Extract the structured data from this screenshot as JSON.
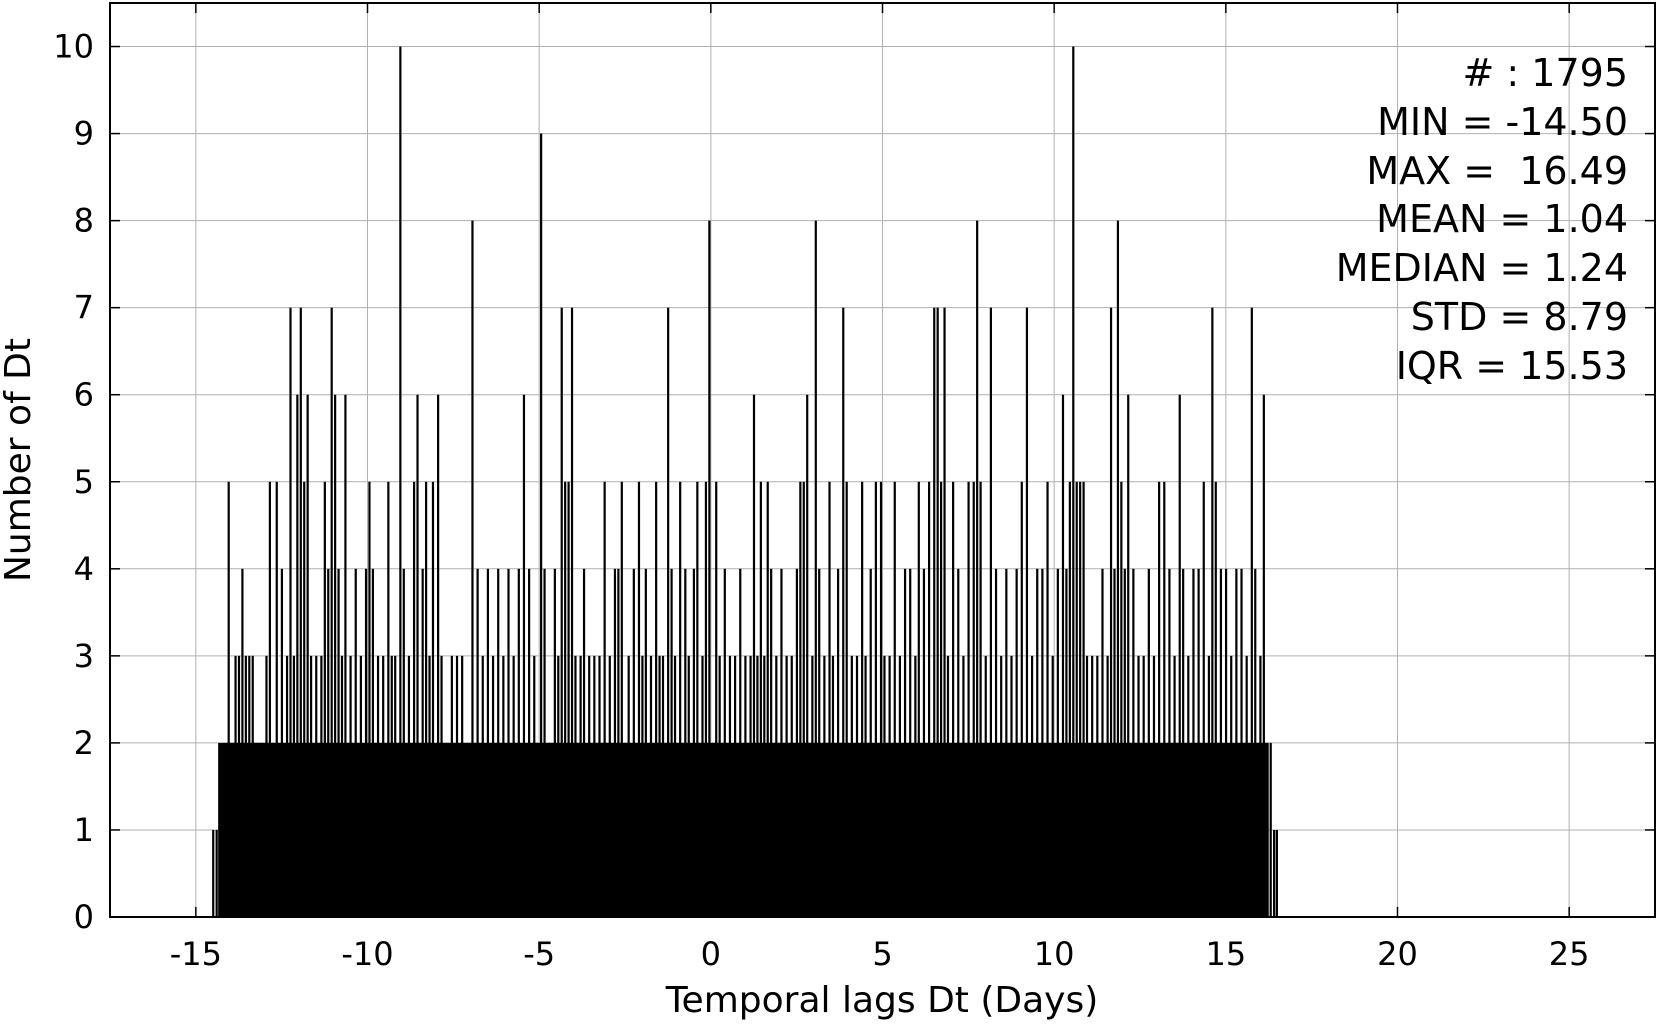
{
  "chart_data": {
    "type": "bar",
    "title": "",
    "xlabel": "Temporal lags Dt (Days)",
    "ylabel": "Number of Dt",
    "xlim": [
      -17.5,
      27.5
    ],
    "ylim": [
      0,
      10.5
    ],
    "grid": true,
    "bar_color": "#000000",
    "x_ticks": [
      -15,
      -10,
      -5,
      0,
      5,
      10,
      15,
      20,
      25
    ],
    "x_tick_labels": [
      "-15",
      "-10",
      "-5",
      "0",
      "5",
      "10",
      "15",
      "20",
      "25"
    ],
    "y_ticks": [
      0,
      1,
      2,
      3,
      4,
      5,
      6,
      7,
      8,
      9,
      10
    ],
    "y_tick_labels": [
      "0",
      "1",
      "2",
      "3",
      "4",
      "5",
      "6",
      "7",
      "8",
      "9",
      "10"
    ],
    "stats": [
      "# : 1795",
      "MIN = -14.50",
      "MAX =  16.49",
      "MEAN = 1.04",
      "MEDIAN = 1.24",
      "STD = 8.79",
      "IQR = 15.53"
    ],
    "bin_width": 0.05,
    "bins": [
      {
        "x": -14.5,
        "count": 1
      },
      {
        "x": -14.4,
        "count": 1
      },
      {
        "x": -14.3,
        "count": 2
      },
      {
        "x": -14.2,
        "count": 2
      },
      {
        "x": -14.1,
        "count": 2
      },
      {
        "x": -14.05,
        "count": 5
      },
      {
        "x": -13.95,
        "count": 2
      },
      {
        "x": -13.85,
        "count": 3
      },
      {
        "x": -13.75,
        "count": 3
      },
      {
        "x": -13.65,
        "count": 4
      },
      {
        "x": -13.55,
        "count": 3
      },
      {
        "x": -13.45,
        "count": 3
      },
      {
        "x": -13.35,
        "count": 3
      },
      {
        "x": -13.25,
        "count": 2
      },
      {
        "x": -13.1,
        "count": 2
      },
      {
        "x": -12.95,
        "count": 3
      },
      {
        "x": -12.85,
        "count": 5
      },
      {
        "x": -12.75,
        "count": 2
      },
      {
        "x": -12.65,
        "count": 5
      },
      {
        "x": -12.5,
        "count": 4
      },
      {
        "x": -12.35,
        "count": 3
      },
      {
        "x": -12.25,
        "count": 7
      },
      {
        "x": -12.15,
        "count": 3
      },
      {
        "x": -12.05,
        "count": 6
      },
      {
        "x": -11.95,
        "count": 7
      },
      {
        "x": -11.85,
        "count": 5
      },
      {
        "x": -11.75,
        "count": 6
      },
      {
        "x": -11.65,
        "count": 3
      },
      {
        "x": -11.5,
        "count": 3
      },
      {
        "x": -11.35,
        "count": 3
      },
      {
        "x": -11.25,
        "count": 5
      },
      {
        "x": -11.15,
        "count": 4
      },
      {
        "x": -11.05,
        "count": 7
      },
      {
        "x": -10.95,
        "count": 6
      },
      {
        "x": -10.85,
        "count": 4
      },
      {
        "x": -10.75,
        "count": 3
      },
      {
        "x": -10.65,
        "count": 6
      },
      {
        "x": -10.5,
        "count": 3
      },
      {
        "x": -10.35,
        "count": 4
      },
      {
        "x": -10.2,
        "count": 3
      },
      {
        "x": -10.05,
        "count": 4
      },
      {
        "x": -9.95,
        "count": 5
      },
      {
        "x": -9.85,
        "count": 4
      },
      {
        "x": -9.7,
        "count": 3
      },
      {
        "x": -9.55,
        "count": 3
      },
      {
        "x": -9.4,
        "count": 5
      },
      {
        "x": -9.3,
        "count": 3
      },
      {
        "x": -9.2,
        "count": 3
      },
      {
        "x": -9.05,
        "count": 10
      },
      {
        "x": -8.95,
        "count": 4
      },
      {
        "x": -8.8,
        "count": 3
      },
      {
        "x": -8.65,
        "count": 5
      },
      {
        "x": -8.55,
        "count": 6
      },
      {
        "x": -8.4,
        "count": 4
      },
      {
        "x": -8.3,
        "count": 5
      },
      {
        "x": -8.2,
        "count": 3
      },
      {
        "x": -8.1,
        "count": 5
      },
      {
        "x": -7.95,
        "count": 6
      },
      {
        "x": -7.85,
        "count": 3
      },
      {
        "x": -7.7,
        "count": 2
      },
      {
        "x": -7.55,
        "count": 3
      },
      {
        "x": -7.4,
        "count": 3
      },
      {
        "x": -7.25,
        "count": 3
      },
      {
        "x": -7.1,
        "count": 2
      },
      {
        "x": -6.95,
        "count": 8
      },
      {
        "x": -6.8,
        "count": 4
      },
      {
        "x": -6.65,
        "count": 3
      },
      {
        "x": -6.5,
        "count": 4
      },
      {
        "x": -6.35,
        "count": 3
      },
      {
        "x": -6.2,
        "count": 4
      },
      {
        "x": -6.05,
        "count": 3
      },
      {
        "x": -5.9,
        "count": 4
      },
      {
        "x": -5.75,
        "count": 3
      },
      {
        "x": -5.6,
        "count": 4
      },
      {
        "x": -5.45,
        "count": 6
      },
      {
        "x": -5.3,
        "count": 4
      },
      {
        "x": -5.15,
        "count": 3
      },
      {
        "x": -5.05,
        "count": 2
      },
      {
        "x": -4.95,
        "count": 9
      },
      {
        "x": -4.85,
        "count": 4
      },
      {
        "x": -4.7,
        "count": 2
      },
      {
        "x": -4.55,
        "count": 4
      },
      {
        "x": -4.45,
        "count": 3
      },
      {
        "x": -4.35,
        "count": 7
      },
      {
        "x": -4.25,
        "count": 5
      },
      {
        "x": -4.15,
        "count": 5
      },
      {
        "x": -4.05,
        "count": 7
      },
      {
        "x": -3.95,
        "count": 3
      },
      {
        "x": -3.8,
        "count": 3
      },
      {
        "x": -3.7,
        "count": 4
      },
      {
        "x": -3.55,
        "count": 3
      },
      {
        "x": -3.4,
        "count": 3
      },
      {
        "x": -3.25,
        "count": 3
      },
      {
        "x": -3.1,
        "count": 5
      },
      {
        "x": -2.95,
        "count": 3
      },
      {
        "x": -2.8,
        "count": 4
      },
      {
        "x": -2.7,
        "count": 4
      },
      {
        "x": -2.6,
        "count": 5
      },
      {
        "x": -2.5,
        "count": 2
      },
      {
        "x": -2.4,
        "count": 3
      },
      {
        "x": -2.25,
        "count": 4
      },
      {
        "x": -2.1,
        "count": 5
      },
      {
        "x": -2.0,
        "count": 3
      },
      {
        "x": -1.9,
        "count": 4
      },
      {
        "x": -1.75,
        "count": 3
      },
      {
        "x": -1.6,
        "count": 5
      },
      {
        "x": -1.5,
        "count": 3
      },
      {
        "x": -1.4,
        "count": 3
      },
      {
        "x": -1.25,
        "count": 7
      },
      {
        "x": -1.15,
        "count": 4
      },
      {
        "x": -1.05,
        "count": 3
      },
      {
        "x": -0.9,
        "count": 5
      },
      {
        "x": -0.75,
        "count": 4
      },
      {
        "x": -0.65,
        "count": 3
      },
      {
        "x": -0.5,
        "count": 4
      },
      {
        "x": -0.4,
        "count": 5
      },
      {
        "x": -0.25,
        "count": 3
      },
      {
        "x": -0.15,
        "count": 5
      },
      {
        "x": -0.05,
        "count": 8
      },
      {
        "x": 0.05,
        "count": 2
      },
      {
        "x": 0.15,
        "count": 5
      },
      {
        "x": 0.25,
        "count": 3
      },
      {
        "x": 0.4,
        "count": 4
      },
      {
        "x": 0.55,
        "count": 3
      },
      {
        "x": 0.7,
        "count": 3
      },
      {
        "x": 0.85,
        "count": 4
      },
      {
        "x": 1.0,
        "count": 3
      },
      {
        "x": 1.15,
        "count": 3
      },
      {
        "x": 1.25,
        "count": 6
      },
      {
        "x": 1.35,
        "count": 3
      },
      {
        "x": 1.45,
        "count": 5
      },
      {
        "x": 1.55,
        "count": 3
      },
      {
        "x": 1.65,
        "count": 5
      },
      {
        "x": 1.75,
        "count": 4
      },
      {
        "x": 1.9,
        "count": 3
      },
      {
        "x": 2.05,
        "count": 4
      },
      {
        "x": 2.2,
        "count": 3
      },
      {
        "x": 2.35,
        "count": 3
      },
      {
        "x": 2.5,
        "count": 4
      },
      {
        "x": 2.6,
        "count": 5
      },
      {
        "x": 2.7,
        "count": 5
      },
      {
        "x": 2.8,
        "count": 6
      },
      {
        "x": 2.95,
        "count": 3
      },
      {
        "x": 3.05,
        "count": 8
      },
      {
        "x": 3.15,
        "count": 4
      },
      {
        "x": 3.3,
        "count": 3
      },
      {
        "x": 3.45,
        "count": 5
      },
      {
        "x": 3.55,
        "count": 3
      },
      {
        "x": 3.7,
        "count": 4
      },
      {
        "x": 3.85,
        "count": 7
      },
      {
        "x": 3.95,
        "count": 5
      },
      {
        "x": 4.1,
        "count": 3
      },
      {
        "x": 4.25,
        "count": 3
      },
      {
        "x": 4.4,
        "count": 5
      },
      {
        "x": 4.5,
        "count": 3
      },
      {
        "x": 4.65,
        "count": 4
      },
      {
        "x": 4.8,
        "count": 5
      },
      {
        "x": 4.95,
        "count": 5
      },
      {
        "x": 5.05,
        "count": 3
      },
      {
        "x": 5.2,
        "count": 3
      },
      {
        "x": 5.35,
        "count": 5
      },
      {
        "x": 5.5,
        "count": 3
      },
      {
        "x": 5.65,
        "count": 4
      },
      {
        "x": 5.8,
        "count": 4
      },
      {
        "x": 5.95,
        "count": 3
      },
      {
        "x": 6.05,
        "count": 5
      },
      {
        "x": 6.2,
        "count": 4
      },
      {
        "x": 6.35,
        "count": 5
      },
      {
        "x": 6.5,
        "count": 7
      },
      {
        "x": 6.6,
        "count": 7
      },
      {
        "x": 6.7,
        "count": 5
      },
      {
        "x": 6.8,
        "count": 7
      },
      {
        "x": 6.9,
        "count": 3
      },
      {
        "x": 7.05,
        "count": 5
      },
      {
        "x": 7.2,
        "count": 4
      },
      {
        "x": 7.35,
        "count": 3
      },
      {
        "x": 7.5,
        "count": 5
      },
      {
        "x": 7.65,
        "count": 5
      },
      {
        "x": 7.75,
        "count": 8
      },
      {
        "x": 7.85,
        "count": 5
      },
      {
        "x": 8.0,
        "count": 3
      },
      {
        "x": 8.15,
        "count": 7
      },
      {
        "x": 8.3,
        "count": 4
      },
      {
        "x": 8.45,
        "count": 3
      },
      {
        "x": 8.6,
        "count": 4
      },
      {
        "x": 8.75,
        "count": 3
      },
      {
        "x": 8.9,
        "count": 4
      },
      {
        "x": 9.05,
        "count": 5
      },
      {
        "x": 9.2,
        "count": 7
      },
      {
        "x": 9.35,
        "count": 3
      },
      {
        "x": 9.5,
        "count": 4
      },
      {
        "x": 9.65,
        "count": 4
      },
      {
        "x": 9.8,
        "count": 5
      },
      {
        "x": 9.95,
        "count": 3
      },
      {
        "x": 10.1,
        "count": 4
      },
      {
        "x": 10.25,
        "count": 6
      },
      {
        "x": 10.35,
        "count": 4
      },
      {
        "x": 10.45,
        "count": 5
      },
      {
        "x": 10.55,
        "count": 10
      },
      {
        "x": 10.65,
        "count": 5
      },
      {
        "x": 10.75,
        "count": 5
      },
      {
        "x": 10.85,
        "count": 5
      },
      {
        "x": 10.95,
        "count": 3
      },
      {
        "x": 11.1,
        "count": 3
      },
      {
        "x": 11.25,
        "count": 3
      },
      {
        "x": 11.4,
        "count": 4
      },
      {
        "x": 11.55,
        "count": 3
      },
      {
        "x": 11.65,
        "count": 7
      },
      {
        "x": 11.75,
        "count": 4
      },
      {
        "x": 11.85,
        "count": 8
      },
      {
        "x": 11.95,
        "count": 5
      },
      {
        "x": 12.05,
        "count": 4
      },
      {
        "x": 12.15,
        "count": 6
      },
      {
        "x": 12.3,
        "count": 4
      },
      {
        "x": 12.45,
        "count": 3
      },
      {
        "x": 12.6,
        "count": 3
      },
      {
        "x": 12.75,
        "count": 4
      },
      {
        "x": 12.9,
        "count": 3
      },
      {
        "x": 13.05,
        "count": 5
      },
      {
        "x": 13.2,
        "count": 5
      },
      {
        "x": 13.35,
        "count": 4
      },
      {
        "x": 13.5,
        "count": 3
      },
      {
        "x": 13.65,
        "count": 6
      },
      {
        "x": 13.75,
        "count": 4
      },
      {
        "x": 13.9,
        "count": 3
      },
      {
        "x": 14.05,
        "count": 4
      },
      {
        "x": 14.2,
        "count": 4
      },
      {
        "x": 14.35,
        "count": 5
      },
      {
        "x": 14.5,
        "count": 3
      },
      {
        "x": 14.6,
        "count": 7
      },
      {
        "x": 14.7,
        "count": 5
      },
      {
        "x": 14.85,
        "count": 4
      },
      {
        "x": 15.0,
        "count": 4
      },
      {
        "x": 15.15,
        "count": 3
      },
      {
        "x": 15.3,
        "count": 4
      },
      {
        "x": 15.45,
        "count": 4
      },
      {
        "x": 15.6,
        "count": 3
      },
      {
        "x": 15.75,
        "count": 7
      },
      {
        "x": 15.85,
        "count": 4
      },
      {
        "x": 16.0,
        "count": 3
      },
      {
        "x": 16.1,
        "count": 6
      },
      {
        "x": 16.2,
        "count": 2
      },
      {
        "x": 16.3,
        "count": 2
      },
      {
        "x": 16.4,
        "count": 1
      },
      {
        "x": 16.48,
        "count": 1
      }
    ],
    "filler_level": 2,
    "filler_range": [
      -14.35,
      16.25
    ]
  }
}
